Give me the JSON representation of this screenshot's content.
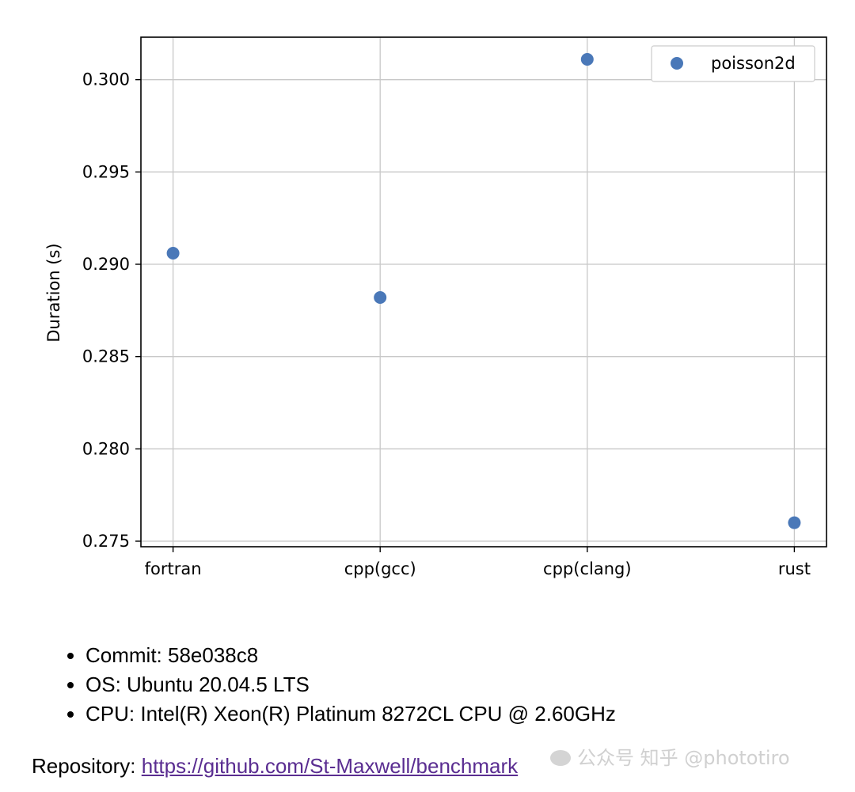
{
  "chart_data": {
    "type": "scatter",
    "categories": [
      "fortran",
      "cpp(gcc)",
      "cpp(clang)",
      "rust"
    ],
    "series": [
      {
        "name": "poisson2d",
        "color": "#4a78b8",
        "values": [
          0.2906,
          0.2882,
          0.3011,
          0.276
        ]
      }
    ],
    "title": "",
    "xlabel": "",
    "ylabel": "Duration (s)",
    "ylim": [
      0.2747,
      0.3023
    ],
    "yticks": [
      0.275,
      0.28,
      0.285,
      0.29,
      0.295,
      0.3
    ],
    "ytick_labels": [
      "0.275",
      "0.280",
      "0.285",
      "0.290",
      "0.295",
      "0.300"
    ],
    "grid": true,
    "legend_position": "upper right"
  },
  "info": {
    "items": [
      "Commit: 58e038c8",
      "OS: Ubuntu 20.04.5 LTS",
      "CPU: Intel(R) Xeon(R) Platinum 8272CL CPU @ 2.60GHz"
    ]
  },
  "repository": {
    "label": "Repository: ",
    "link_text": "https://github.com/St-Maxwell/benchmark"
  },
  "watermark": {
    "text": "公众号 知乎 @phototiro"
  }
}
